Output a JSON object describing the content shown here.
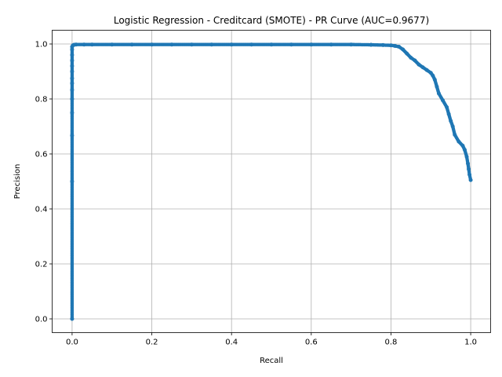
{
  "chart_data": {
    "type": "line",
    "title": "Logistic Regression - Creditcard (SMOTE) - PR Curve (AUC=0.9677)",
    "xlabel": "Recall",
    "ylabel": "Precision",
    "xlim": [
      -0.05,
      1.05
    ],
    "ylim": [
      -0.05,
      1.05
    ],
    "xticks": [
      0.0,
      0.2,
      0.4,
      0.6,
      0.8,
      1.0
    ],
    "xtick_labels": [
      "0.0",
      "0.2",
      "0.4",
      "0.6",
      "0.8",
      "1.0"
    ],
    "yticks": [
      0.0,
      0.2,
      0.4,
      0.6,
      0.8,
      1.0
    ],
    "ytick_labels": [
      "0.0",
      "0.2",
      "0.4",
      "0.6",
      "0.8",
      "1.0"
    ],
    "grid": true,
    "color": "#1f77b4",
    "series": [
      {
        "marker": "circle",
        "x": [
          0.0,
          0.0,
          0.0,
          0.0,
          0.0,
          0.0,
          0.0,
          0.0,
          0.0,
          0.0,
          0.0,
          0.0,
          0.0,
          0.0,
          0.002,
          0.005,
          0.01,
          0.03,
          0.05,
          0.1,
          0.15,
          0.2,
          0.25,
          0.3,
          0.35,
          0.4,
          0.45,
          0.5,
          0.55,
          0.6,
          0.65,
          0.7,
          0.75,
          0.78,
          0.8,
          0.81,
          0.82,
          0.83,
          0.84,
          0.85,
          0.86,
          0.87,
          0.88,
          0.89,
          0.9,
          0.905,
          0.91,
          0.915,
          0.92,
          0.93,
          0.94,
          0.945,
          0.95,
          0.955,
          0.96,
          0.97,
          0.98,
          0.985,
          0.99,
          0.993,
          0.995,
          0.997,
          1.0
        ],
        "y": [
          0.0,
          0.5,
          0.667,
          0.75,
          0.8,
          0.833,
          0.857,
          0.875,
          0.9,
          0.92,
          0.94,
          0.96,
          0.98,
          0.99,
          0.995,
          0.997,
          0.998,
          0.998,
          0.998,
          0.998,
          0.998,
          0.998,
          0.998,
          0.998,
          0.998,
          0.998,
          0.998,
          0.998,
          0.998,
          0.998,
          0.998,
          0.998,
          0.997,
          0.996,
          0.995,
          0.993,
          0.99,
          0.98,
          0.965,
          0.95,
          0.94,
          0.925,
          0.915,
          0.905,
          0.895,
          0.885,
          0.87,
          0.845,
          0.82,
          0.795,
          0.77,
          0.745,
          0.72,
          0.7,
          0.67,
          0.645,
          0.63,
          0.615,
          0.59,
          0.565,
          0.545,
          0.525,
          0.505
        ]
      }
    ]
  }
}
